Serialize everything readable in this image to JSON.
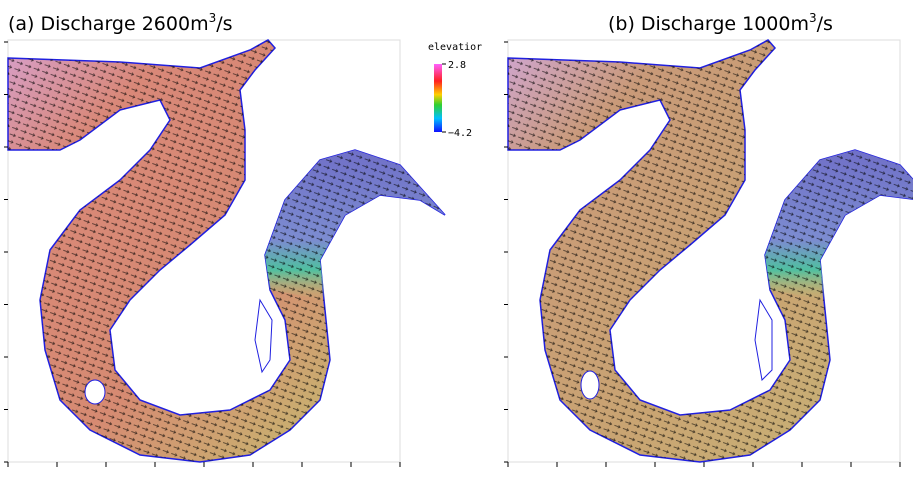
{
  "panels": [
    {
      "title": {
        "prefix": "(a) Discharge 2600m",
        "sup": "3",
        "suffix": "/s"
      }
    },
    {
      "title": {
        "prefix": "(b) Discharge 1000m",
        "sup": "3",
        "suffix": "/s"
      }
    }
  ],
  "colorbar": {
    "label": "elevatior",
    "range": [
      -4.2,
      2.8
    ],
    "ticks": [
      2.8,
      {
        "value": -4.2,
        "label": "−4.2"
      }
    ]
  }
}
